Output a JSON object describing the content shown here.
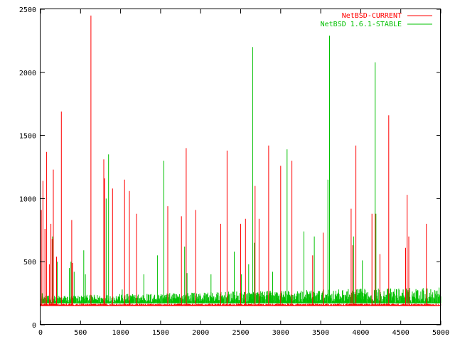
{
  "chart_data": {
    "type": "line",
    "title": "",
    "xlabel": "",
    "ylabel": "",
    "xlim": [
      0,
      5000
    ],
    "ylim": [
      0,
      2500
    ],
    "x_ticks": [
      0,
      500,
      1000,
      1500,
      2000,
      2500,
      3000,
      3500,
      4000,
      4500,
      5000
    ],
    "y_ticks": [
      0,
      500,
      1000,
      1500,
      2000,
      2500
    ],
    "grid": false,
    "legend_position": "top-right",
    "series": [
      {
        "name": "NetBSD-CURRENT",
        "color": "#ff0000",
        "baseline": 155,
        "spikes": [
          [
            10,
            910
          ],
          [
            30,
            1140
          ],
          [
            55,
            760
          ],
          [
            75,
            1370
          ],
          [
            110,
            480
          ],
          [
            130,
            800
          ],
          [
            145,
            680
          ],
          [
            160,
            1230
          ],
          [
            200,
            540
          ],
          [
            260,
            1690
          ],
          [
            390,
            830
          ],
          [
            400,
            490
          ],
          [
            630,
            2450
          ],
          [
            790,
            1310
          ],
          [
            800,
            1160
          ],
          [
            900,
            1080
          ],
          [
            1050,
            1150
          ],
          [
            1110,
            1060
          ],
          [
            1200,
            880
          ],
          [
            1590,
            940
          ],
          [
            1760,
            860
          ],
          [
            1820,
            1400
          ],
          [
            1940,
            910
          ],
          [
            2250,
            800
          ],
          [
            2330,
            1380
          ],
          [
            2500,
            800
          ],
          [
            2560,
            840
          ],
          [
            2680,
            1100
          ],
          [
            2730,
            840
          ],
          [
            2850,
            1420
          ],
          [
            3000,
            1260
          ],
          [
            3140,
            1300
          ],
          [
            3400,
            550
          ],
          [
            3530,
            730
          ],
          [
            3880,
            920
          ],
          [
            3900,
            630
          ],
          [
            3940,
            1420
          ],
          [
            4140,
            880
          ],
          [
            4180,
            880
          ],
          [
            4240,
            560
          ],
          [
            4350,
            1660
          ],
          [
            4560,
            610
          ],
          [
            4580,
            1030
          ],
          [
            4600,
            700
          ],
          [
            4820,
            800
          ]
        ]
      },
      {
        "name": "NetBSD 1.6.1-STABLE",
        "color": "#00c000",
        "baseline": 170,
        "band_top_start": 230,
        "band_top_end": 300,
        "spikes": [
          [
            20,
            250
          ],
          [
            150,
            700
          ],
          [
            210,
            500
          ],
          [
            360,
            450
          ],
          [
            380,
            500
          ],
          [
            420,
            420
          ],
          [
            540,
            590
          ],
          [
            560,
            400
          ],
          [
            820,
            1000
          ],
          [
            850,
            1350
          ],
          [
            1020,
            280
          ],
          [
            1290,
            400
          ],
          [
            1460,
            550
          ],
          [
            1540,
            1300
          ],
          [
            1800,
            620
          ],
          [
            1830,
            410
          ],
          [
            2130,
            400
          ],
          [
            2420,
            580
          ],
          [
            2510,
            400
          ],
          [
            2600,
            480
          ],
          [
            2650,
            2200
          ],
          [
            2670,
            650
          ],
          [
            2900,
            420
          ],
          [
            3080,
            1390
          ],
          [
            3290,
            740
          ],
          [
            3420,
            700
          ],
          [
            3590,
            1150
          ],
          [
            3610,
            2290
          ],
          [
            3910,
            700
          ],
          [
            4020,
            510
          ],
          [
            4180,
            2080
          ],
          [
            4190,
            880
          ]
        ]
      }
    ]
  }
}
